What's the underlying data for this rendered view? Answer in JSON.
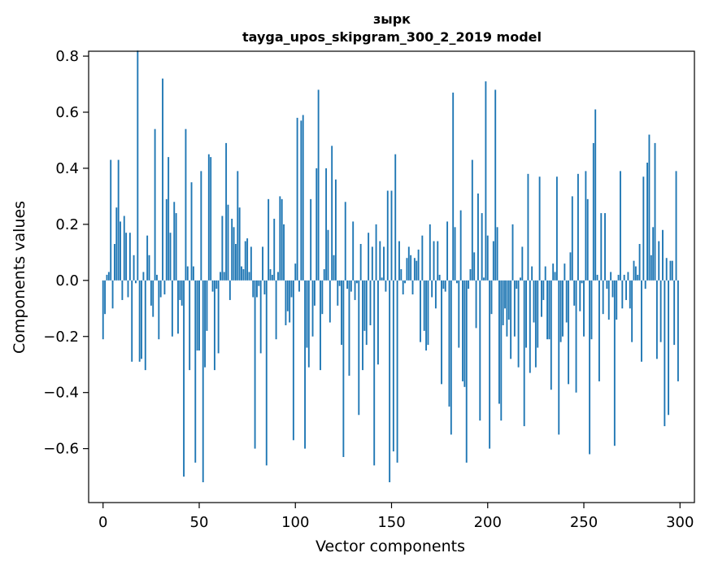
{
  "chart_data": {
    "type": "bar",
    "title": "зырк",
    "subtitle": "tayga_upos_skipgram_300_2_2019 model",
    "xlabel": "Vector components",
    "ylabel": "Components values",
    "xlim": [
      -7.5,
      307.5
    ],
    "ylim": [
      -0.7925,
      0.8175
    ],
    "xticks": [
      0,
      50,
      100,
      150,
      200,
      250,
      300
    ],
    "yticks": [
      -0.6,
      -0.4,
      -0.2,
      0.0,
      0.2,
      0.4,
      0.6,
      0.8
    ],
    "ytick_labels": [
      "−0.6",
      "−0.4",
      "−0.2",
      "0.0",
      "0.2",
      "0.4",
      "0.6",
      "0.8"
    ],
    "grid": false,
    "bar_color": "#1f77b4",
    "values": [
      -0.21,
      -0.12,
      0.02,
      0.03,
      0.43,
      -0.1,
      0.13,
      0.26,
      0.43,
      0.21,
      -0.07,
      0.23,
      0.17,
      -0.06,
      0.17,
      -0.29,
      0.09,
      -0.01,
      0.82,
      -0.29,
      -0.28,
      0.03,
      -0.32,
      0.16,
      0.09,
      -0.09,
      -0.13,
      0.54,
      0.02,
      -0.21,
      -0.06,
      0.72,
      -0.05,
      0.29,
      0.44,
      0.17,
      -0.2,
      0.28,
      0.24,
      -0.19,
      -0.07,
      -0.09,
      -0.7,
      0.54,
      0.05,
      -0.32,
      0.35,
      0.05,
      -0.65,
      -0.25,
      -0.25,
      0.39,
      -0.72,
      -0.31,
      -0.18,
      0.45,
      0.44,
      -0.04,
      -0.32,
      -0.03,
      -0.26,
      0.03,
      0.23,
      0.03,
      0.49,
      0.27,
      -0.07,
      0.22,
      0.19,
      0.13,
      0.39,
      0.26,
      0.05,
      0.04,
      0.14,
      0.15,
      0.03,
      0.12,
      -0.06,
      -0.6,
      -0.06,
      -0.02,
      -0.26,
      0.12,
      -0.05,
      -0.66,
      0.29,
      0.04,
      0.02,
      0.22,
      -0.21,
      0.03,
      0.3,
      0.29,
      0.2,
      -0.16,
      -0.11,
      -0.15,
      -0.06,
      -0.57,
      0.06,
      0.58,
      -0.04,
      0.57,
      0.59,
      -0.6,
      -0.24,
      -0.31,
      0.29,
      -0.2,
      -0.09,
      0.4,
      0.68,
      -0.32,
      -0.12,
      0.04,
      0.4,
      0.18,
      -0.15,
      0.48,
      0.09,
      0.36,
      -0.09,
      -0.02,
      -0.23,
      -0.63,
      0.28,
      -0.03,
      -0.34,
      -0.04,
      0.21,
      -0.07,
      -0.01,
      -0.48,
      0.13,
      -0.32,
      -0.18,
      -0.23,
      0.17,
      -0.16,
      0.12,
      -0.66,
      0.2,
      -0.3,
      0.14,
      0.01,
      0.12,
      -0.04,
      0.32,
      -0.72,
      0.32,
      -0.61,
      0.45,
      -0.65,
      0.14,
      0.04,
      -0.05,
      -0.01,
      0.08,
      0.12,
      0.09,
      -0.05,
      0.08,
      0.07,
      0.11,
      -0.22,
      0.16,
      -0.18,
      -0.25,
      -0.23,
      0.2,
      -0.06,
      0.14,
      -0.1,
      0.14,
      0.02,
      -0.37,
      -0.03,
      -0.04,
      0.21,
      -0.45,
      -0.55,
      0.67,
      0.19,
      -0.01,
      -0.24,
      0.25,
      -0.36,
      -0.38,
      -0.65,
      -0.03,
      0.04,
      0.43,
      0.1,
      -0.17,
      0.31,
      -0.5,
      0.24,
      0.01,
      0.71,
      0.16,
      -0.6,
      -0.12,
      0.14,
      0.68,
      0.19,
      -0.44,
      -0.5,
      -0.16,
      -0.1,
      -0.2,
      -0.14,
      -0.28,
      0.2,
      -0.2,
      -0.03,
      -0.31,
      0.01,
      0.12,
      -0.52,
      -0.24,
      0.38,
      -0.33,
      0.05,
      -0.15,
      -0.31,
      -0.24,
      0.37,
      -0.13,
      -0.07,
      0.05,
      -0.21,
      -0.21,
      -0.39,
      0.06,
      0.03,
      0.37,
      -0.55,
      -0.22,
      -0.2,
      0.06,
      -0.15,
      -0.37,
      0.1,
      0.3,
      -0.09,
      -0.4,
      0.38,
      -0.11,
      -0.01,
      -0.2,
      0.39,
      0.29,
      -0.62,
      -0.21,
      0.49,
      0.61,
      0.02,
      -0.36,
      0.24,
      -0.12,
      0.24,
      -0.03,
      -0.14,
      0.03,
      -0.06,
      -0.59,
      -0.14,
      0.02,
      0.39,
      -0.1,
      0.02,
      -0.07,
      0.03,
      -0.1,
      -0.22,
      0.07,
      0.05,
      0.02,
      0.13,
      -0.29,
      0.37,
      -0.03,
      0.42,
      0.52,
      0.09,
      0.19,
      0.49,
      -0.28,
      0.14,
      -0.22,
      0.18,
      -0.52,
      0.08,
      -0.48,
      0.07,
      0.07,
      -0.23,
      0.39,
      -0.36
    ]
  }
}
